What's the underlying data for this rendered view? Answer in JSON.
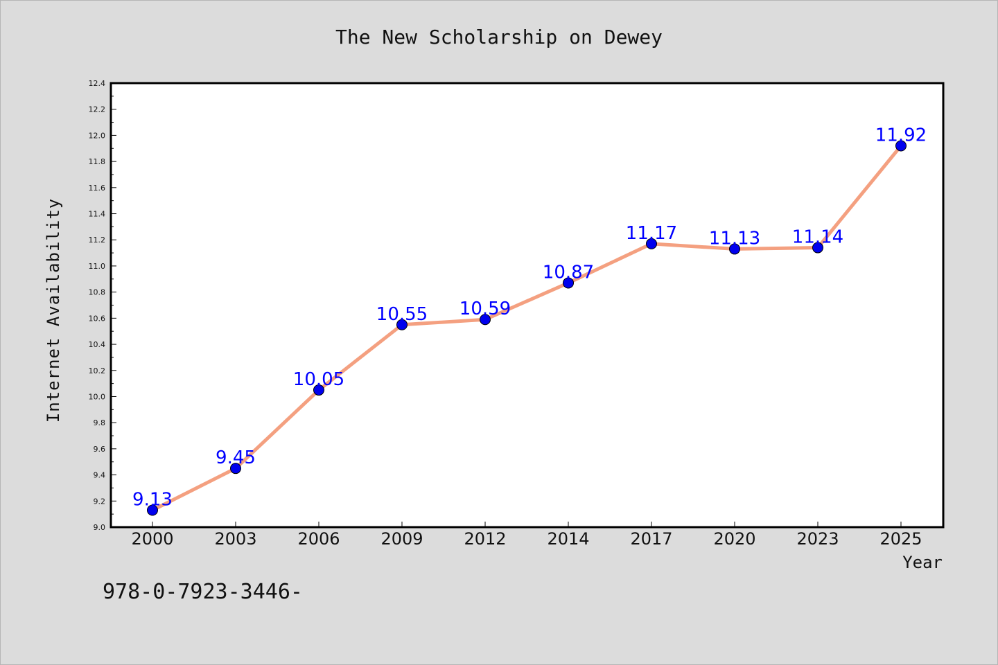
{
  "footer_text": "978-0-7923-3446-",
  "colors": {
    "background": "#dcdcdc",
    "plot_background": "#ffffff",
    "line": "#f4a080",
    "marker": "#0000ee",
    "data_label": "#0000ff"
  },
  "chart_data": {
    "type": "line",
    "title": "The New Scholarship on Dewey",
    "xlabel": "Year",
    "ylabel": "Internet Availability",
    "categories": [
      "2000",
      "2003",
      "2006",
      "2009",
      "2012",
      "2014",
      "2017",
      "2020",
      "2023",
      "2025"
    ],
    "series": [
      {
        "values": [
          9.13,
          9.45,
          10.05,
          10.55,
          10.59,
          10.87,
          11.17,
          11.13,
          11.14,
          11.92
        ],
        "data_labels": [
          "9.13",
          "9.45",
          "10.05",
          "10.55",
          "10.59",
          "10.87",
          "11.17",
          "11.13",
          "11.14",
          "11.92"
        ],
        "marker": "circle"
      }
    ],
    "ylim": [
      9.0,
      12.4
    ],
    "yticks": [
      "9.0",
      "9.2",
      "9.4",
      "9.6",
      "9.8",
      "10.0",
      "10.2",
      "10.4",
      "10.6",
      "10.8",
      "11.0",
      "11.2",
      "11.4",
      "11.6",
      "11.8",
      "12.0",
      "12.2",
      "12.4"
    ],
    "grid": false,
    "legend": "none"
  }
}
